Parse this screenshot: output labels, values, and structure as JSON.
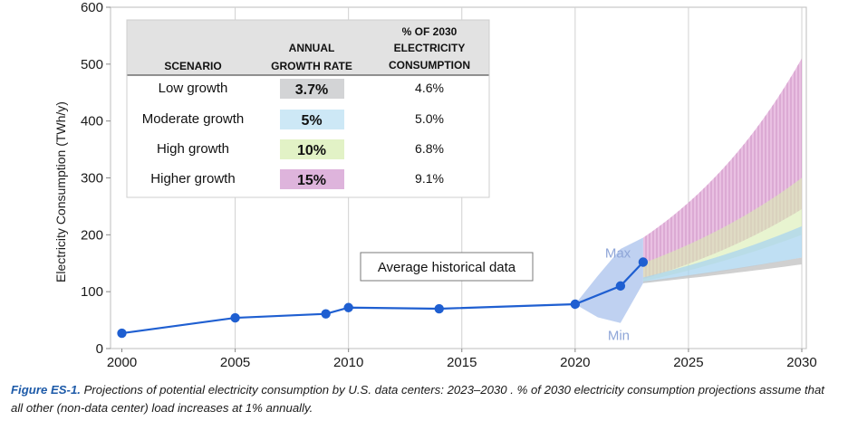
{
  "chart_data": {
    "type": "line",
    "ylabel": "Electricity Consumption (TWh/y)",
    "xlabel": "",
    "ylim": [
      0,
      600
    ],
    "xlim": [
      1999.5,
      2030.2
    ],
    "y_ticks": [
      "0",
      "100",
      "200",
      "300",
      "400",
      "500",
      "600"
    ],
    "x_ticks": [
      "2000",
      "2005",
      "2010",
      "2015",
      "2020",
      "2025",
      "2030"
    ],
    "grid": "vertical",
    "series": [
      {
        "name": "Average historical data",
        "color": "#1f5fd1",
        "x": [
          2000,
          2005,
          2009,
          2010,
          2014,
          2020,
          2022,
          2023
        ],
        "y": [
          27,
          54,
          61,
          72,
          70,
          78,
          110,
          152
        ]
      }
    ],
    "range_band": {
      "start_year": 2020,
      "end_year": 2023,
      "lower": [
        {
          "x": 2020,
          "y": 78
        },
        {
          "x": 2021,
          "y": 55
        },
        {
          "x": 2022,
          "y": 45
        },
        {
          "x": 2023,
          "y": 115
        }
      ],
      "upper": [
        {
          "x": 2020,
          "y": 78
        },
        {
          "x": 2021,
          "y": 128
        },
        {
          "x": 2022,
          "y": 175
        },
        {
          "x": 2023,
          "y": 195
        }
      ],
      "color": "#b8ccf0"
    },
    "projections": [
      {
        "scenario": "Low growth",
        "color": "#c8c8c8",
        "x": [
          2023,
          2030
        ],
        "low": [
          115,
          148
        ],
        "high": [
          118,
          160
        ]
      },
      {
        "scenario": "Moderate growth",
        "color": "#a9d4ef",
        "x": [
          2023,
          2030
        ],
        "low": [
          115,
          160
        ],
        "high": [
          125,
          215
        ]
      },
      {
        "scenario": "High growth",
        "color": "#d8ecb0",
        "x": [
          2023,
          2030
        ],
        "low": [
          118,
          200
        ],
        "high": [
          150,
          300
        ]
      },
      {
        "scenario": "Higher growth",
        "color": "#d9a6d3",
        "x": [
          2023,
          2030
        ],
        "low": [
          122,
          245
        ],
        "high": [
          195,
          510
        ]
      }
    ],
    "annotations": [
      {
        "text": "Max",
        "x": 2021,
        "y": 168
      },
      {
        "text": "Min",
        "x": 2022,
        "y": 23
      },
      {
        "text": "Average historical data",
        "x": 2012,
        "y": 140
      }
    ]
  },
  "legend": {
    "headers": {
      "scenario": "SCENARIO",
      "rate_line1": "ANNUAL",
      "rate_line2": "GROWTH RATE",
      "pct_line1": "% OF 2030",
      "pct_line2": "ELECTRICITY",
      "pct_line3": "CONSUMPTION"
    },
    "rows": [
      {
        "scenario": "Low growth",
        "rate": "3.7%",
        "pct": "4.6%",
        "color": "#d3d4d6"
      },
      {
        "scenario": "Moderate growth",
        "rate": "5%",
        "pct": "5.0%",
        "color": "#cde8f6"
      },
      {
        "scenario": "High growth",
        "rate": "10%",
        "pct": "6.8%",
        "color": "#e2f2c6"
      },
      {
        "scenario": "Higher growth",
        "rate": "15%",
        "pct": "9.1%",
        "color": "#deb4dc"
      }
    ]
  },
  "caption": {
    "figure": "Figure ES-1.",
    "text": " Projections of potential electricity consumption by U.S. data centers: 2023–2030 . % of 2030 electricity consumption projections assume that all other (non-data center) load increases at 1% annually."
  }
}
